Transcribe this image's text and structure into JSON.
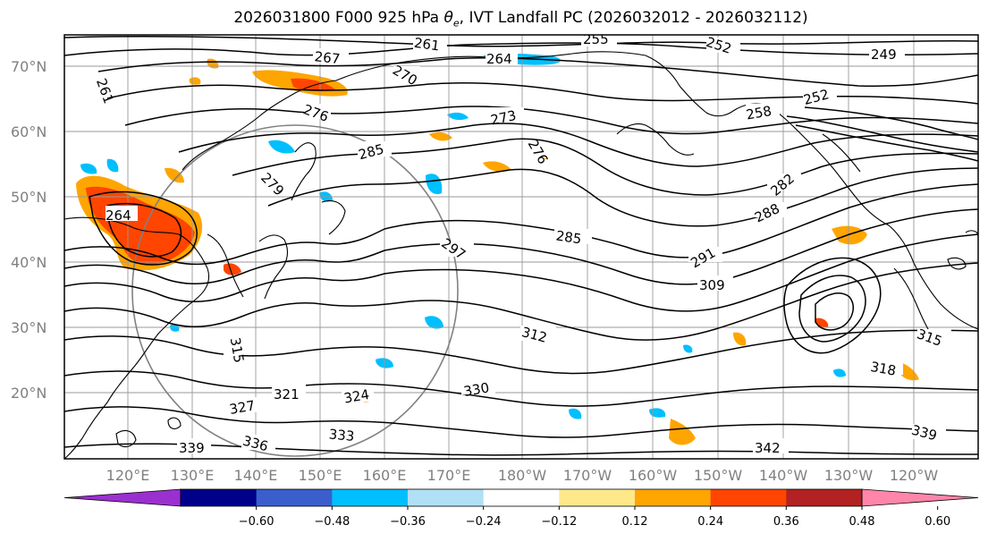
{
  "title": {
    "prefix": "2026031800 F000 925 hPa ",
    "theta": "θ",
    "theta_sub": "e",
    "suffix": ", IVT Landfall PC (2026032012 - 2026032112)"
  },
  "map": {
    "lat_labels": [
      "70°N",
      "60°N",
      "50°N",
      "40°N",
      "30°N",
      "20°N"
    ],
    "lon_labels": [
      "120°E",
      "130°E",
      "140°E",
      "150°E",
      "160°E",
      "170°E",
      "180°W",
      "170°W",
      "160°W",
      "150°W",
      "140°W",
      "130°W",
      "120°W"
    ],
    "contour_labels": [
      "255",
      "261",
      "267",
      "270",
      "264",
      "252",
      "249",
      "252",
      "258",
      "261",
      "264",
      "276",
      "273",
      "276",
      "285",
      "279",
      "285",
      "282",
      "288",
      "297",
      "291",
      "309",
      "312",
      "315",
      "321",
      "324",
      "327",
      "330",
      "333",
      "336",
      "339",
      "342",
      "339",
      "318",
      "315"
    ],
    "colors": {
      "contour": "#000000",
      "coast": "#000000",
      "grid": "#999999",
      "circle": "#808080"
    }
  },
  "colorbar": {
    "ticks": [
      "−0.60",
      "−0.48",
      "−0.36",
      "−0.24",
      "−0.12",
      "0.12",
      "0.24",
      "0.36",
      "0.48",
      "0.60"
    ],
    "colors": [
      "#9b30d0",
      "#00008b",
      "#3a5fcd",
      "#00bfff",
      "#b0e0f6",
      "#ffffff",
      "#ffe88a",
      "#ffa500",
      "#ff4500",
      "#b22222",
      "#ff85aa"
    ]
  }
}
